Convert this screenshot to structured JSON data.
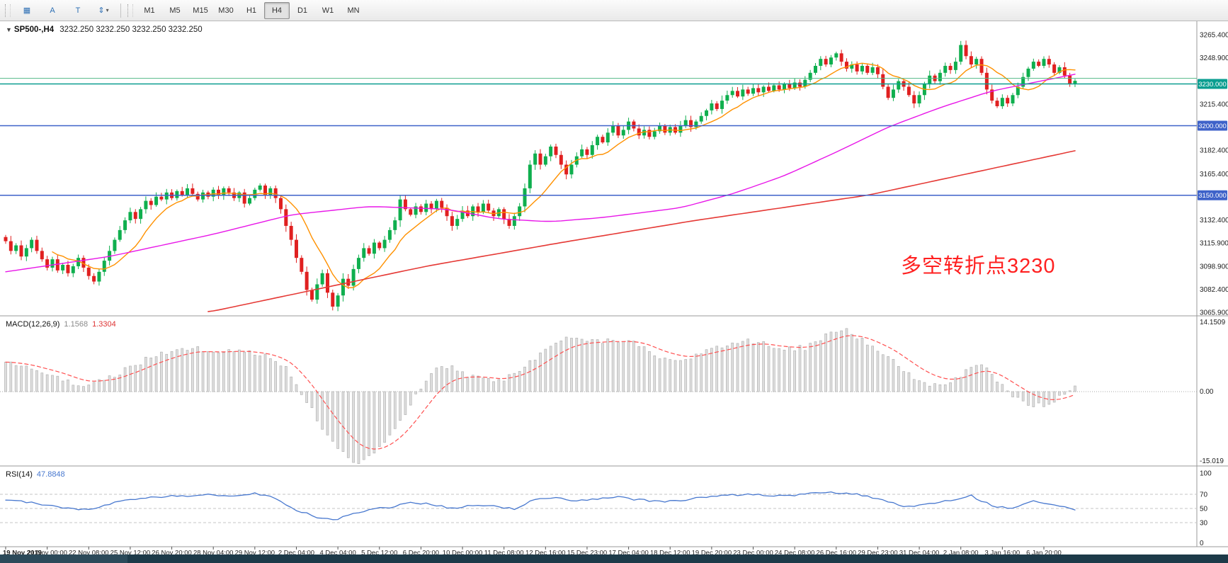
{
  "toolbar": {
    "left_buttons": [
      {
        "name": "chart-window-icon",
        "glyph": "▦"
      },
      {
        "name": "cursor-tool-icon",
        "glyph": "A"
      },
      {
        "name": "text-tool-icon",
        "glyph": "T"
      },
      {
        "name": "scale-arrows-icon",
        "glyph": "⇕",
        "caret": "▾"
      }
    ],
    "timeframes": [
      {
        "label": "M1",
        "active": false
      },
      {
        "label": "M5",
        "active": false
      },
      {
        "label": "M15",
        "active": false
      },
      {
        "label": "M30",
        "active": false
      },
      {
        "label": "H1",
        "active": false
      },
      {
        "label": "H4",
        "active": true
      },
      {
        "label": "D1",
        "active": false
      },
      {
        "label": "W1",
        "active": false
      },
      {
        "label": "MN",
        "active": false
      }
    ]
  },
  "chart_data": [
    {
      "type": "candlestick",
      "title": "SP500-,H4",
      "ohlc_text": "3232.250 3232.250 3232.250 3232.250",
      "annotation": {
        "text": "多空转折点3230",
        "color": "#ff2020"
      },
      "ylim": [
        3064,
        3276
      ],
      "open_first": 3120,
      "closes": [
        3117,
        3110,
        3114,
        3106,
        3112,
        3118,
        3110,
        3104,
        3098,
        3104,
        3096,
        3100,
        3094,
        3099,
        3105,
        3098,
        3092,
        3088,
        3095,
        3103,
        3110,
        3118,
        3125,
        3132,
        3138,
        3133,
        3140,
        3146,
        3143,
        3149,
        3147,
        3152,
        3148,
        3153,
        3150,
        3155,
        3151,
        3147,
        3152,
        3149,
        3154,
        3150,
        3155,
        3152,
        3148,
        3152,
        3144,
        3148,
        3154,
        3157,
        3150,
        3155,
        3148,
        3140,
        3128,
        3118,
        3105,
        3095,
        3082,
        3075,
        3086,
        3094,
        3080,
        3070,
        3078,
        3090,
        3085,
        3097,
        3105,
        3112,
        3108,
        3116,
        3112,
        3118,
        3125,
        3132,
        3147,
        3140,
        3136,
        3142,
        3138,
        3144,
        3140,
        3146,
        3141,
        3135,
        3128,
        3133,
        3139,
        3135,
        3142,
        3138,
        3144,
        3139,
        3135,
        3140,
        3133,
        3128,
        3135,
        3142,
        3155,
        3172,
        3180,
        3172,
        3178,
        3185,
        3179,
        3172,
        3165,
        3172,
        3178,
        3183,
        3179,
        3186,
        3192,
        3188,
        3195,
        3200,
        3193,
        3197,
        3203,
        3198,
        3193,
        3197,
        3192,
        3196,
        3200,
        3195,
        3199,
        3195,
        3200,
        3204,
        3199,
        3203,
        3207,
        3211,
        3216,
        3212,
        3218,
        3222,
        3225,
        3221,
        3226,
        3223,
        3227,
        3224,
        3228,
        3225,
        3229,
        3226,
        3230,
        3227,
        3231,
        3228,
        3233,
        3238,
        3243,
        3248,
        3244,
        3249,
        3252,
        3246,
        3241,
        3244,
        3239,
        3243,
        3238,
        3242,
        3237,
        3228,
        3220,
        3226,
        3232,
        3228,
        3222,
        3216,
        3222,
        3230,
        3236,
        3232,
        3238,
        3243,
        3240,
        3246,
        3258,
        3250,
        3244,
        3248,
        3238,
        3226,
        3218,
        3214,
        3220,
        3216,
        3222,
        3228,
        3235,
        3241,
        3246,
        3243,
        3248,
        3244,
        3238,
        3242,
        3236,
        3230,
        3232.25
      ],
      "up_color": "#0faf4e",
      "down_color": "#e02020",
      "moving_averages": [
        {
          "name": "ma-fast",
          "color": "#ff9100",
          "period": 10
        },
        {
          "name": "ma-medium",
          "color": "#e816e8",
          "anchors": [
            [
              0,
              3095
            ],
            [
              20,
              3106
            ],
            [
              40,
              3122
            ],
            [
              55,
              3136
            ],
            [
              70,
              3142
            ],
            [
              85,
              3140
            ],
            [
              95,
              3133
            ],
            [
              105,
              3131
            ],
            [
              115,
              3134
            ],
            [
              130,
              3141
            ],
            [
              140,
              3151
            ],
            [
              150,
              3164
            ],
            [
              160,
              3181
            ],
            [
              170,
              3199
            ],
            [
              180,
              3213
            ],
            [
              190,
              3225
            ],
            [
              198,
              3231
            ],
            [
              206,
              3237
            ]
          ]
        },
        {
          "name": "ma-slow",
          "color": "#e53935",
          "anchors": [
            [
              39,
              3066
            ],
            [
              81,
              3099
            ],
            [
              107,
              3116
            ],
            [
              133,
              3132
            ],
            [
              166,
              3150
            ],
            [
              206,
              3182
            ]
          ]
        }
      ],
      "hlines": [
        {
          "price": 3234.0,
          "color": "#53b987",
          "width": 1,
          "label": null
        },
        {
          "price": 3230.0,
          "color": "#0a9e90",
          "width": 1.5,
          "label": "3230.000",
          "badge_color": "#0a9e90"
        },
        {
          "price": 3200.0,
          "color": "#3e62c9",
          "width": 1.5,
          "label": "3200.000",
          "badge_color": "#3e62c9"
        },
        {
          "price": 3150.0,
          "color": "#3e62c9",
          "width": 1.5,
          "label": "3150.000",
          "badge_color": "#3e62c9"
        }
      ],
      "price_ticks": [
        "3265.400",
        "3248.900",
        "3215.400",
        "3182.400",
        "3165.400",
        "3132.400",
        "3115.900",
        "3098.900",
        "3082.400",
        "3065.900"
      ],
      "x_labels": [
        "19 Nov 2019",
        "21 Nov 00:00",
        "22 Nov 08:00",
        "25 Nov 12:00",
        "26 Nov 20:00",
        "28 Nov 04:00",
        "29 Nov 12:00",
        "2 Dec 04:00",
        "4 Dec 04:00",
        "5 Dec 12:00",
        "6 Dec 20:00",
        "10 Dec 00:00",
        "11 Dec 08:00",
        "12 Dec 16:00",
        "15 Dec 23:00",
        "17 Dec 04:00",
        "18 Dec 12:00",
        "19 Dec 20:00",
        "23 Dec 00:00",
        "24 Dec 08:00",
        "26 Dec 16:00",
        "29 Dec 23:00",
        "31 Dec 04:00",
        "2 Jan 08:00",
        "3 Jan 16:00",
        "6 Jan 20:00"
      ]
    },
    {
      "type": "bar",
      "label": "MACD(12,26,9)",
      "value_main": "1.1568",
      "value_signal": "1.3304",
      "bar_color": "#dedede",
      "bar_stroke": "#b3b3b3",
      "signal_color": "#ff5050",
      "scale_ticks": [
        "14.1509",
        "0.00",
        "-15.019"
      ],
      "ylim": [
        -15.019,
        14.1509
      ],
      "anchors": [
        [
          0,
          6
        ],
        [
          8,
          3.5
        ],
        [
          14,
          1
        ],
        [
          20,
          3
        ],
        [
          28,
          7
        ],
        [
          36,
          9
        ],
        [
          44,
          8
        ],
        [
          50,
          7.5
        ],
        [
          54,
          5
        ],
        [
          58,
          -2
        ],
        [
          62,
          -9
        ],
        [
          66,
          -13.5
        ],
        [
          68,
          -15
        ],
        [
          72,
          -11
        ],
        [
          76,
          -6
        ],
        [
          80,
          1
        ],
        [
          84,
          5.5
        ],
        [
          88,
          4
        ],
        [
          90,
          3
        ],
        [
          94,
          2
        ],
        [
          98,
          3.5
        ],
        [
          102,
          7
        ],
        [
          106,
          10.5
        ],
        [
          110,
          11.5
        ],
        [
          114,
          10
        ],
        [
          118,
          10.5
        ],
        [
          122,
          9.5
        ],
        [
          126,
          7
        ],
        [
          130,
          6
        ],
        [
          134,
          7.5
        ],
        [
          138,
          9.5
        ],
        [
          142,
          10.5
        ],
        [
          146,
          10
        ],
        [
          150,
          8.5
        ],
        [
          154,
          9
        ],
        [
          158,
          11.5
        ],
        [
          162,
          12.5
        ],
        [
          166,
          10
        ],
        [
          170,
          7
        ],
        [
          174,
          3.5
        ],
        [
          178,
          1
        ],
        [
          182,
          2
        ],
        [
          186,
          5
        ],
        [
          188,
          5.5
        ],
        [
          192,
          1
        ],
        [
          196,
          -2.5
        ],
        [
          200,
          -3
        ],
        [
          203,
          -1
        ],
        [
          206,
          1.1568
        ]
      ]
    },
    {
      "type": "line",
      "label": "RSI(14)",
      "value": "47.8848",
      "line_color": "#4878cf",
      "levels": [
        70,
        50,
        30
      ],
      "scale_ticks": [
        100,
        70,
        50,
        30,
        0
      ],
      "ylim": [
        0,
        100
      ],
      "anchors": [
        [
          0,
          62
        ],
        [
          5,
          58
        ],
        [
          10,
          52
        ],
        [
          16,
          48
        ],
        [
          22,
          60
        ],
        [
          28,
          66
        ],
        [
          34,
          68
        ],
        [
          40,
          70
        ],
        [
          44,
          67
        ],
        [
          48,
          71
        ],
        [
          52,
          64
        ],
        [
          56,
          48
        ],
        [
          60,
          38
        ],
        [
          63,
          33
        ],
        [
          66,
          40
        ],
        [
          70,
          48
        ],
        [
          74,
          52
        ],
        [
          78,
          58
        ],
        [
          82,
          56
        ],
        [
          86,
          50
        ],
        [
          90,
          54
        ],
        [
          94,
          53
        ],
        [
          98,
          49
        ],
        [
          102,
          63
        ],
        [
          106,
          66
        ],
        [
          110,
          60
        ],
        [
          114,
          64
        ],
        [
          118,
          67
        ],
        [
          122,
          62
        ],
        [
          126,
          60
        ],
        [
          130,
          62
        ],
        [
          134,
          65
        ],
        [
          138,
          68
        ],
        [
          142,
          70
        ],
        [
          146,
          69
        ],
        [
          150,
          68
        ],
        [
          154,
          70
        ],
        [
          158,
          73
        ],
        [
          162,
          72
        ],
        [
          166,
          67
        ],
        [
          170,
          60
        ],
        [
          174,
          52
        ],
        [
          178,
          56
        ],
        [
          182,
          62
        ],
        [
          186,
          68
        ],
        [
          190,
          54
        ],
        [
          194,
          50
        ],
        [
          198,
          60
        ],
        [
          202,
          55
        ],
        [
          206,
          47.8848
        ]
      ]
    }
  ]
}
